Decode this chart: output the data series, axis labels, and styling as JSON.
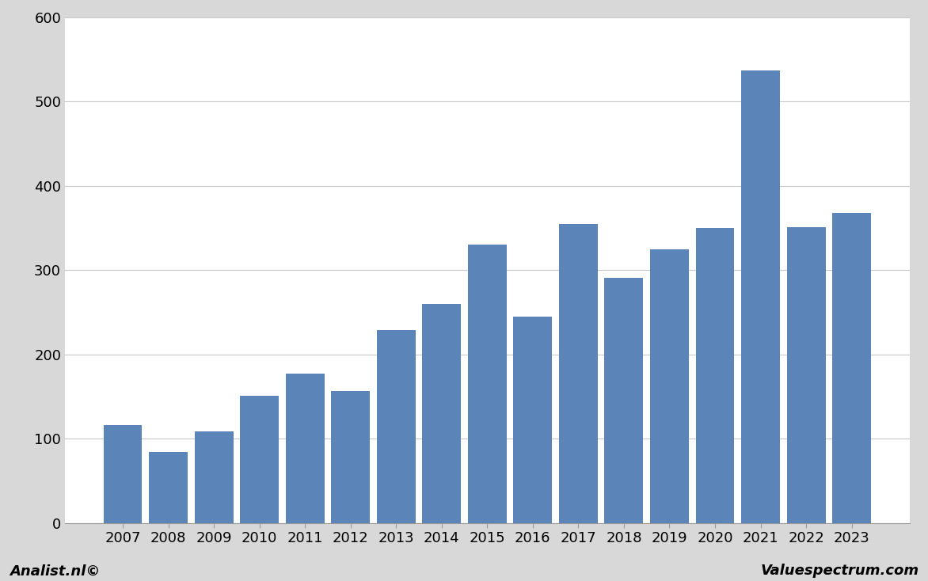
{
  "years": [
    2007,
    2008,
    2009,
    2010,
    2011,
    2012,
    2013,
    2014,
    2015,
    2016,
    2017,
    2018,
    2019,
    2020,
    2021,
    2022,
    2023
  ],
  "values": [
    116,
    84,
    109,
    151,
    177,
    157,
    229,
    260,
    330,
    245,
    355,
    291,
    325,
    350,
    537,
    351,
    368
  ],
  "bar_color": "#5b85b8",
  "ylim": [
    0,
    600
  ],
  "yticks": [
    0,
    100,
    200,
    300,
    400,
    500,
    600
  ],
  "background_color": "#d8d8d8",
  "plot_background": "#ffffff",
  "grid_color": "#c8c8c8",
  "label_left": "Analist.nl©",
  "label_right": "Valuespectrum.com",
  "bar_width": 0.85,
  "fig_width": 11.72,
  "fig_height": 7.34,
  "dpi": 100
}
